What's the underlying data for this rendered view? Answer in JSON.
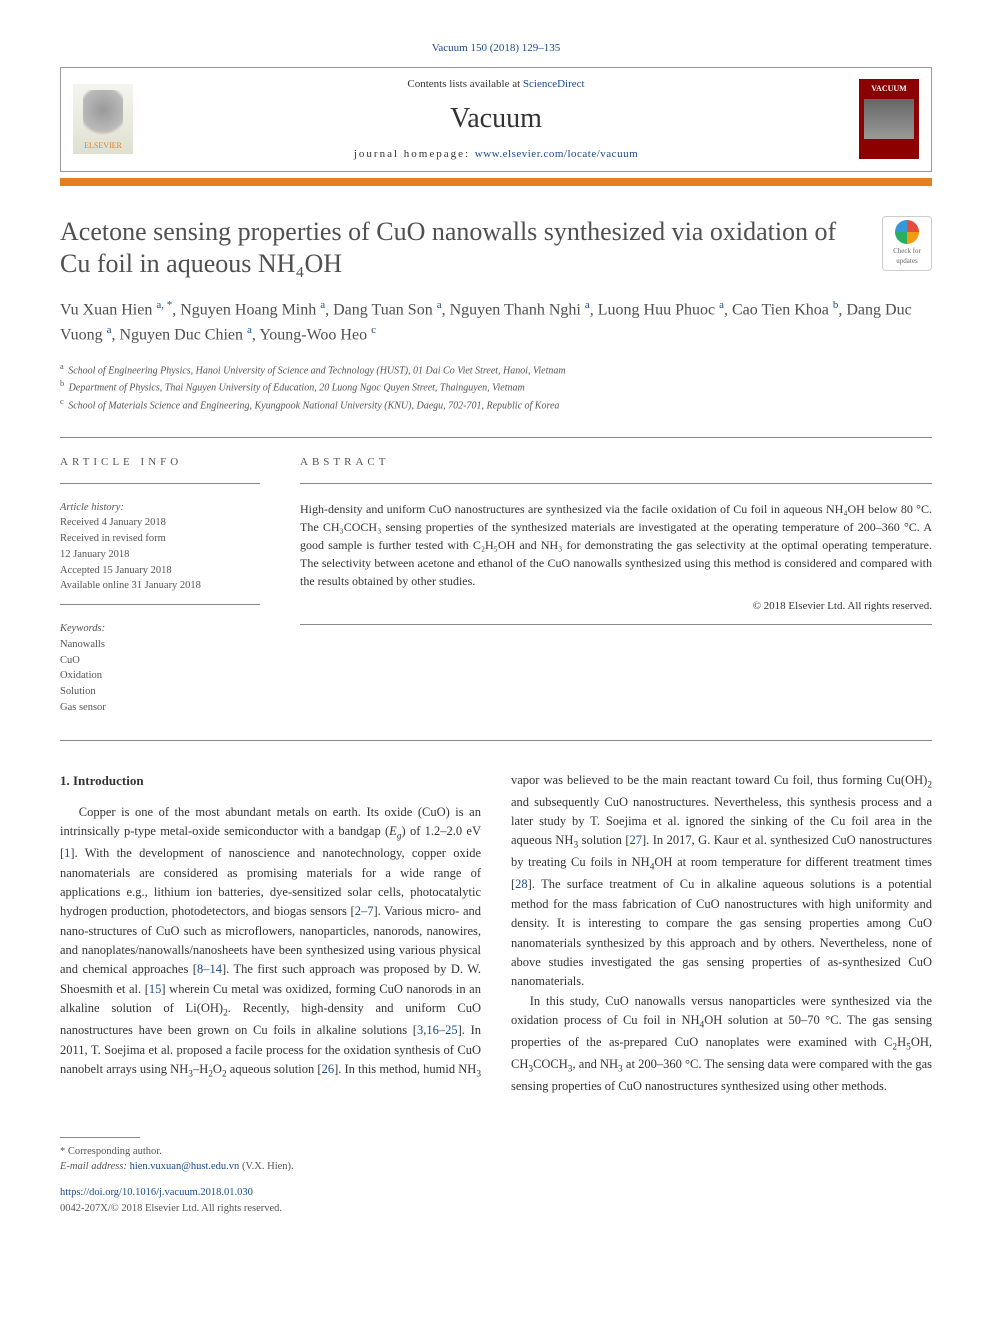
{
  "journal_ref": "Vacuum 150 (2018) 129–135",
  "header": {
    "contents_prefix": "Contents lists available at ",
    "contents_link": "ScienceDirect",
    "journal_name": "Vacuum",
    "homepage_prefix": "journal homepage: ",
    "homepage_link": "www.elsevier.com/locate/vacuum",
    "elsevier_label": "ELSEVIER",
    "cover_label": "VACUUM"
  },
  "check_badge": {
    "line1": "Check for",
    "line2": "updates"
  },
  "title": "Acetone sensing properties of CuO nanowalls synthesized via oxidation of Cu foil in aqueous NH₄OH",
  "authors_html": "Vu Xuan Hien <sup>a, *</sup>, Nguyen Hoang Minh <sup>a</sup>, Dang Tuan Son <sup>a</sup>, Nguyen Thanh Nghi <sup>a</sup>, Luong Huu Phuoc <sup>a</sup>, Cao Tien Khoa <sup>b</sup>, Dang Duc Vuong <sup>a</sup>, Nguyen Duc Chien <sup>a</sup>, Young-Woo Heo <sup>c</sup>",
  "affiliations": [
    {
      "sup": "a",
      "text": "School of Engineering Physics, Hanoi University of Science and Technology (HUST), 01 Dai Co Viet Street, Hanoi, Vietnam"
    },
    {
      "sup": "b",
      "text": "Department of Physics, Thai Nguyen University of Education, 20 Luong Ngoc Quyen Street, Thainguyen, Vietnam"
    },
    {
      "sup": "c",
      "text": "School of Materials Science and Engineering, Kyungpook National University (KNU), Daegu, 702-701, Republic of Korea"
    }
  ],
  "article_info": {
    "heading": "ARTICLE INFO",
    "history_label": "Article history:",
    "history": [
      "Received 4 January 2018",
      "Received in revised form",
      "12 January 2018",
      "Accepted 15 January 2018",
      "Available online 31 January 2018"
    ],
    "keywords_label": "Keywords:",
    "keywords": [
      "Nanowalls",
      "CuO",
      "Oxidation",
      "Solution",
      "Gas sensor"
    ]
  },
  "abstract": {
    "heading": "ABSTRACT",
    "text": "High-density and uniform CuO nanostructures are synthesized via the facile oxidation of Cu foil in aqueous NH₄OH below 80 °C. The CH₃COCH₃ sensing properties of the synthesized materials are investigated at the operating temperature of 200–360 °C. A good sample is further tested with C₂H₅OH and NH₃ for demonstrating the gas selectivity at the optimal operating temperature. The selectivity between acetone and ethanol of the CuO nanowalls synthesized using this method is considered and compared with the results obtained by other studies.",
    "copyright": "© 2018 Elsevier Ltd. All rights reserved."
  },
  "intro": {
    "heading": "1. Introduction",
    "p1_html": "Copper is one of the most abundant metals on earth. Its oxide (CuO) is an intrinsically p-type metal-oxide semiconductor with a bandgap (<i>E<sub>g</sub></i>) of 1.2–2.0 eV [<span class='ref-link'>1</span>]. With the development of nanoscience and nanotechnology, copper oxide nanomaterials are considered as promising materials for a wide range of applications e.g., lithium ion batteries, dye-sensitized solar cells, photocatalytic hydrogen production, photodetectors, and biogas sensors [<span class='ref-link'>2–7</span>]. Various micro- and nano-structures of CuO such as microflowers, nanoparticles, nanorods, nanowires, and nanoplates/nanowalls/nanosheets have been synthesized using various physical and chemical approaches [<span class='ref-link'>8–14</span>]. The first such approach was proposed by D. W. Shoesmith et al. [<span class='ref-link'>15</span>] wherein Cu metal was oxidized, forming CuO nanorods in an alkaline solution of Li(OH)<sub>2</sub>. Recently, high-density and uniform CuO nanostructures have been grown on Cu foils in alkaline solutions [<span class='ref-link'>3</span>,<span class='ref-link'>16–25</span>]. In 2011, T. Soejima et al. proposed a facile process for the oxidation synthesis of CuO nanobelt arrays using NH<sub>3</sub>–H<sub>2</sub>O<sub>2</sub> aqueous solution [<span class='ref-link'>26</span>]. In this method, humid NH<sub>3</sub> vapor was believed to be the main reactant toward Cu foil, thus forming Cu(OH)<sub>2</sub> and subsequently CuO nanostructures. Nevertheless, this synthesis process and a later study by T. Soejima et al. ignored the sinking of the Cu foil area in the aqueous NH<sub>3</sub> solution [<span class='ref-link'>27</span>]. In 2017, G. Kaur et al. synthesized CuO nanostructures by treating Cu foils in NH<sub>4</sub>OH at room temperature for different treatment times [<span class='ref-link'>28</span>]. The surface treatment of Cu in alkaline aqueous solutions is a potential method for the mass fabrication of CuO nanostructures with high uniformity and density. It is interesting to compare the gas sensing properties among CuO nanomaterials synthesized by this approach and by others. Nevertheless, none of above studies investigated the gas sensing properties of as-synthesized CuO nanomaterials.",
    "p2_html": "In this study, CuO nanowalls versus nanoparticles were synthesized via the oxidation process of Cu foil in NH<sub>4</sub>OH solution at 50–70 °C. The gas sensing properties of the as-prepared CuO nanoplates were examined with C<sub>2</sub>H<sub>5</sub>OH, CH<sub>3</sub>COCH<sub>3</sub>, and NH<sub>3</sub> at 200–360 °C. The sensing data were compared with the gas sensing properties of CuO nanostructures synthesized using other methods."
  },
  "footer": {
    "corr_label": "* Corresponding author.",
    "email_label": "E-mail address: ",
    "email": "hien.vuxuan@hust.edu.vn",
    "email_suffix": " (V.X. Hien).",
    "doi": "https://doi.org/10.1016/j.vacuum.2018.01.030",
    "issn": "0042-207X/© 2018 Elsevier Ltd. All rights reserved."
  },
  "colors": {
    "accent_orange": "#e67e22",
    "link_blue": "#1a4b8c",
    "cover_red": "#8b0000"
  }
}
